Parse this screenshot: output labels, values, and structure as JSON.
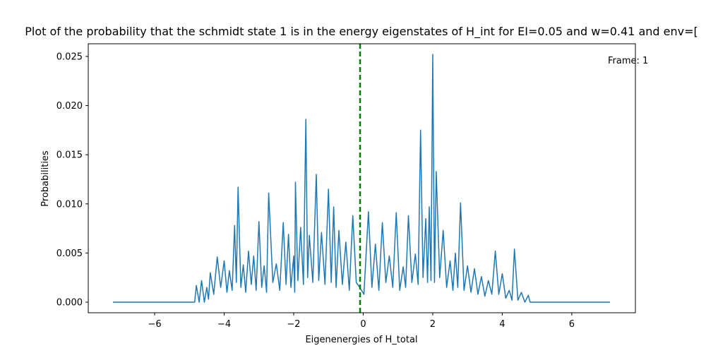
{
  "chart_data": {
    "type": "line",
    "title": "Plot of the probability that the schmidt state 1 is in the energy eigenstates of H_int for EI=0.05 and w=0.41 and env=[",
    "annotation": "Frame: 1",
    "xlabel": "Eigenenergies of H_total",
    "ylabel": "Probabilities",
    "x": [
      -7.2,
      -4.85,
      -4.8,
      -4.72,
      -4.65,
      -4.57,
      -4.5,
      -4.45,
      -4.4,
      -4.3,
      -4.2,
      -4.1,
      -4.0,
      -3.92,
      -3.85,
      -3.77,
      -3.7,
      -3.65,
      -3.6,
      -3.52,
      -3.45,
      -3.38,
      -3.3,
      -3.22,
      -3.15,
      -3.08,
      -3.0,
      -2.92,
      -2.85,
      -2.78,
      -2.72,
      -2.6,
      -2.5,
      -2.4,
      -2.3,
      -2.22,
      -2.15,
      -2.08,
      -2.0,
      -1.97,
      -1.95,
      -1.88,
      -1.8,
      -1.72,
      -1.65,
      -1.6,
      -1.55,
      -1.45,
      -1.35,
      -1.28,
      -1.2,
      -1.1,
      -1.0,
      -0.92,
      -0.85,
      -0.78,
      -0.7,
      -0.6,
      -0.5,
      -0.4,
      -0.3,
      -0.2,
      -0.1,
      0.02,
      0.15,
      0.25,
      0.35,
      0.45,
      0.55,
      0.65,
      0.75,
      0.85,
      0.95,
      1.05,
      1.15,
      1.22,
      1.3,
      1.4,
      1.5,
      1.58,
      1.65,
      1.72,
      1.8,
      1.85,
      1.9,
      1.95,
      2.0,
      2.05,
      2.1,
      2.2,
      2.3,
      2.4,
      2.5,
      2.58,
      2.65,
      2.72,
      2.8,
      2.9,
      3.0,
      3.1,
      3.2,
      3.3,
      3.4,
      3.5,
      3.6,
      3.7,
      3.8,
      3.9,
      4.0,
      4.1,
      4.2,
      4.28,
      4.35,
      4.45,
      4.55,
      4.65,
      4.75,
      4.8,
      7.1
    ],
    "series": [
      {
        "color": "#1f77b4",
        "values": [
          0,
          0,
          0.0017,
          0,
          0.0022,
          0,
          0.0015,
          0.0003,
          0.003,
          0.0008,
          0.0046,
          0.0015,
          0.0042,
          0.001,
          0.0032,
          0.0012,
          0.0078,
          0.002,
          0.0117,
          0.0015,
          0.0038,
          0.001,
          0.0052,
          0.0018,
          0.0047,
          0.0012,
          0.0082,
          0.0015,
          0.0037,
          0.001,
          0.0111,
          0.002,
          0.0039,
          0.0012,
          0.0081,
          0.0018,
          0.0069,
          0.0015,
          0.0047,
          0.001,
          0.0122,
          0.0022,
          0.0076,
          0.0018,
          0.0186,
          0.0025,
          0.0068,
          0.002,
          0.013,
          0.0022,
          0.0071,
          0.0018,
          0.0115,
          0.002,
          0.0097,
          0.0015,
          0.0073,
          0.0018,
          0.0061,
          0.0012,
          0.0088,
          0.002,
          0.0015,
          0.0008,
          0.0092,
          0.0015,
          0.0059,
          0.0012,
          0.0081,
          0.002,
          0.0047,
          0.0015,
          0.0091,
          0.0012,
          0.0036,
          0.0015,
          0.0088,
          0.002,
          0.0049,
          0.0018,
          0.0175,
          0.0025,
          0.0085,
          0.002,
          0.0097,
          0.0022,
          0.0252,
          0.002,
          0.0133,
          0.0025,
          0.0073,
          0.0015,
          0.0042,
          0.0012,
          0.005,
          0.0015,
          0.0101,
          0.0012,
          0.0037,
          0.001,
          0.0034,
          0.0008,
          0.0026,
          0.0006,
          0.0022,
          0.0008,
          0.0052,
          0.0008,
          0.0029,
          0.0004,
          0.0012,
          0.0002,
          0.0054,
          0.0002,
          0.001,
          0,
          0.0007,
          0,
          0
        ]
      }
    ],
    "vline": {
      "x": -0.09,
      "color": "#008000"
    },
    "xlim": [
      -7.91,
      7.83
    ],
    "ylim": [
      -0.00108,
      0.02629
    ],
    "xticks": [
      {
        "value": -6,
        "label": "−6"
      },
      {
        "value": -4,
        "label": "−4"
      },
      {
        "value": -2,
        "label": "−2"
      },
      0,
      2,
      4,
      6
    ],
    "yticks": [
      {
        "value": 0,
        "label": "0.000"
      },
      {
        "value": 0.005,
        "label": "0.005"
      },
      {
        "value": 0.01,
        "label": "0.010"
      },
      {
        "value": 0.015,
        "label": "0.015"
      },
      {
        "value": 0.02,
        "label": "0.020"
      },
      {
        "value": 0.025,
        "label": "0.025"
      }
    ],
    "grid": false
  }
}
